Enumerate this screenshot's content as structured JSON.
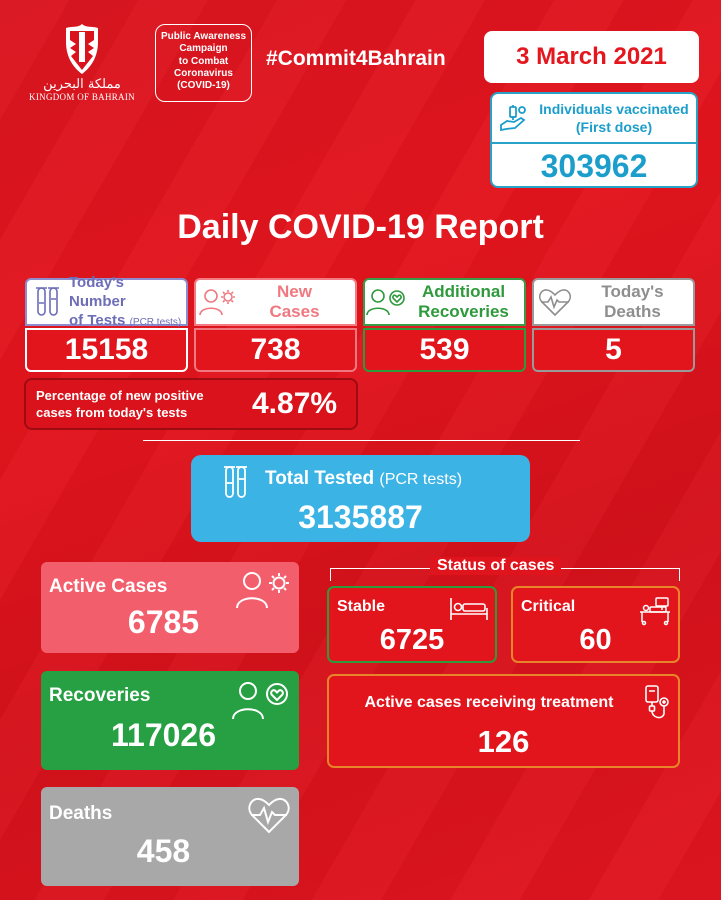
{
  "header": {
    "logo_arabic": "مملكة البحرين",
    "logo_english": "KINGDOM OF BAHRAIN",
    "campaign_lines": [
      "Public Awareness",
      "Campaign",
      "to Combat",
      "Coronavirus",
      "(COVID-19)"
    ],
    "hashtag": "#Commit4Bahrain",
    "date": "3 March 2021"
  },
  "vaccinated": {
    "label_line1": "Individuals vaccinated",
    "label_line2": "(First dose)",
    "value": "303962"
  },
  "title": "Daily COVID-19 Report",
  "daily": {
    "tests": {
      "label_line1": "Today's Number",
      "label_line2": "of Tests",
      "label_small": "(PCR tests)",
      "value": "15158"
    },
    "new_cases": {
      "label_line1": "New",
      "label_line2": "Cases",
      "value": "738"
    },
    "recoveries": {
      "label_line1": "Additional",
      "label_line2": "Recoveries",
      "value": "539"
    },
    "deaths": {
      "label_line1": "Today's",
      "label_line2": "Deaths",
      "value": "5"
    }
  },
  "percentage": {
    "label_line1": "Percentage of new positive",
    "label_line2": "cases from today's tests",
    "value": "4.87%"
  },
  "total_tested": {
    "label": "Total Tested",
    "label_small": "(PCR tests)",
    "value": "3135887"
  },
  "active_cases": {
    "label": "Active Cases",
    "value": "6785"
  },
  "recoveries_total": {
    "label": "Recoveries",
    "value": "117026"
  },
  "deaths_total": {
    "label": "Deaths",
    "value": "458"
  },
  "status": {
    "title": "Status of cases",
    "stable": {
      "label": "Stable",
      "value": "6725"
    },
    "critical": {
      "label": "Critical",
      "value": "60"
    },
    "treatment": {
      "label": "Active cases receiving treatment",
      "value": "126"
    }
  },
  "colors": {
    "background": "#e2151d",
    "vaccine_blue": "#1b9ecb",
    "total_blue": "#3bb3e4",
    "active_pink": "#f35e6c",
    "recoveries_green": "#27a043",
    "deaths_grey": "#a8a8a8",
    "critical_orange": "#e8842a"
  },
  "icons": {
    "tests": "test-tubes-icon",
    "new_cases": "person-virus-icon",
    "recoveries": "person-heart-icon",
    "deaths": "heartbeat-icon",
    "vaccine": "vaccine-hand-icon",
    "stable": "hospital-bed-icon",
    "critical": "icu-bed-icon",
    "treatment": "iv-drip-icon"
  }
}
